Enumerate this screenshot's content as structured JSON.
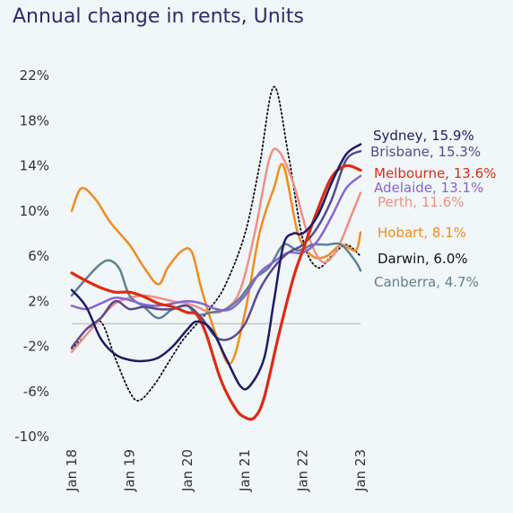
{
  "colors": {
    "background": "#f1f6f8",
    "zero_line": "#c4c4c4",
    "tick_text": "#333333",
    "title": "#2b2c6b"
  },
  "chart_data": {
    "type": "line",
    "title": "Annual change in rents, Units",
    "xlabel": "",
    "ylabel": "",
    "ylim": [
      -10,
      22
    ],
    "xlim": [
      "2018-01",
      "2023-01"
    ],
    "y_ticks": [
      "22%",
      "18%",
      "14%",
      "10%",
      "6%",
      "2%",
      "-2%",
      "-6%",
      "-10%"
    ],
    "y_tick_values": [
      22,
      18,
      14,
      10,
      6,
      2,
      -2,
      -6,
      -10
    ],
    "x_ticks": [
      "Jan 18",
      "Jan 19",
      "Jan 20",
      "Jan 21",
      "Jan 22",
      "Jan 23"
    ],
    "x_tick_values": [
      "2018-01",
      "2019-01",
      "2020-01",
      "2021-01",
      "2022-01",
      "2023-01"
    ],
    "grid": false,
    "legend": "end-labels",
    "series": [
      {
        "name": "Darwin",
        "end_label": "Darwin, 6.0%",
        "color": "#111111",
        "dash": "dotted",
        "points": [
          [
            "2018-01",
            -2.2
          ],
          [
            "2018-04",
            -1.0
          ],
          [
            "2018-07",
            0.2
          ],
          [
            "2018-10",
            -3.0
          ],
          [
            "2019-01",
            -6.0
          ],
          [
            "2019-03",
            -6.8
          ],
          [
            "2019-06",
            -5.5
          ],
          [
            "2019-09",
            -3.5
          ],
          [
            "2019-12",
            -1.5
          ],
          [
            "2020-03",
            0.0
          ],
          [
            "2020-06",
            1.5
          ],
          [
            "2020-09",
            3.5
          ],
          [
            "2021-01",
            8.0
          ],
          [
            "2021-04",
            14.0
          ],
          [
            "2021-07",
            21.0
          ],
          [
            "2021-10",
            15.0
          ],
          [
            "2022-01",
            7.5
          ],
          [
            "2022-04",
            5.0
          ],
          [
            "2022-07",
            6.0
          ],
          [
            "2022-10",
            7.0
          ],
          [
            "2023-01",
            6.0
          ]
        ]
      },
      {
        "name": "Hobart",
        "end_label": "Hobart, 8.1%",
        "color": "#f08c1e",
        "dash": "solid",
        "points": [
          [
            "2018-01",
            10.0
          ],
          [
            "2018-03",
            12.0
          ],
          [
            "2018-06",
            11.0
          ],
          [
            "2018-09",
            9.0
          ],
          [
            "2019-01",
            7.0
          ],
          [
            "2019-04",
            5.0
          ],
          [
            "2019-07",
            3.5
          ],
          [
            "2019-09",
            5.0
          ],
          [
            "2019-12",
            6.5
          ],
          [
            "2020-02",
            6.3
          ],
          [
            "2020-04",
            3.0
          ],
          [
            "2020-07",
            -1.0
          ],
          [
            "2020-10",
            -3.5
          ],
          [
            "2021-01",
            1.0
          ],
          [
            "2021-04",
            8.0
          ],
          [
            "2021-07",
            12.0
          ],
          [
            "2021-09",
            14.0
          ],
          [
            "2021-12",
            8.0
          ],
          [
            "2022-03",
            6.0
          ],
          [
            "2022-06",
            6.0
          ],
          [
            "2022-09",
            7.0
          ],
          [
            "2022-12",
            6.5
          ],
          [
            "2023-01",
            8.1
          ]
        ]
      },
      {
        "name": "Perth",
        "end_label": "Perth, 11.6%",
        "color": "#ef8f86",
        "dash": "solid",
        "points": [
          [
            "2018-01",
            -2.5
          ],
          [
            "2018-04",
            -1.0
          ],
          [
            "2018-07",
            0.5
          ],
          [
            "2018-10",
            1.8
          ],
          [
            "2019-01",
            2.3
          ],
          [
            "2019-04",
            2.5
          ],
          [
            "2019-07",
            2.3
          ],
          [
            "2019-10",
            2.0
          ],
          [
            "2020-01",
            1.8
          ],
          [
            "2020-03",
            1.5
          ],
          [
            "2020-06",
            1.0
          ],
          [
            "2020-09",
            1.3
          ],
          [
            "2020-12",
            3.0
          ],
          [
            "2021-03",
            8.0
          ],
          [
            "2021-06",
            14.5
          ],
          [
            "2021-08",
            15.3
          ],
          [
            "2021-11",
            12.5
          ],
          [
            "2022-02",
            8.0
          ],
          [
            "2022-05",
            5.5
          ],
          [
            "2022-08",
            6.5
          ],
          [
            "2022-11",
            9.5
          ],
          [
            "2023-01",
            11.6
          ]
        ]
      },
      {
        "name": "Canberra",
        "end_label": "Canberra, 4.7%",
        "color": "#5f8190",
        "dash": "solid",
        "points": [
          [
            "2018-01",
            2.5
          ],
          [
            "2018-04",
            4.0
          ],
          [
            "2018-07",
            5.3
          ],
          [
            "2018-09",
            5.6
          ],
          [
            "2018-11",
            4.8
          ],
          [
            "2019-01",
            2.5
          ],
          [
            "2019-04",
            1.5
          ],
          [
            "2019-07",
            0.5
          ],
          [
            "2019-10",
            1.3
          ],
          [
            "2020-01",
            1.6
          ],
          [
            "2020-03",
            0.8
          ],
          [
            "2020-06",
            1.0
          ],
          [
            "2020-09",
            1.3
          ],
          [
            "2020-12",
            2.3
          ],
          [
            "2021-03",
            4.0
          ],
          [
            "2021-06",
            5.0
          ],
          [
            "2021-09",
            7.0
          ],
          [
            "2021-12",
            6.5
          ],
          [
            "2022-03",
            7.0
          ],
          [
            "2022-06",
            7.0
          ],
          [
            "2022-09",
            7.0
          ],
          [
            "2022-12",
            5.5
          ],
          [
            "2023-01",
            4.7
          ]
        ]
      },
      {
        "name": "Adelaide",
        "end_label": "Adelaide, 13.1%",
        "color": "#8864d6",
        "dash": "solid",
        "points": [
          [
            "2018-01",
            1.6
          ],
          [
            "2018-04",
            1.3
          ],
          [
            "2018-07",
            1.8
          ],
          [
            "2018-10",
            2.3
          ],
          [
            "2019-01",
            2.1
          ],
          [
            "2019-04",
            1.7
          ],
          [
            "2019-07",
            1.6
          ],
          [
            "2019-10",
            1.8
          ],
          [
            "2020-01",
            2.0
          ],
          [
            "2020-04",
            1.8
          ],
          [
            "2020-07",
            1.3
          ],
          [
            "2020-10",
            1.3
          ],
          [
            "2021-01",
            2.5
          ],
          [
            "2021-04",
            4.5
          ],
          [
            "2021-07",
            5.5
          ],
          [
            "2021-10",
            6.3
          ],
          [
            "2022-01",
            6.3
          ],
          [
            "2022-04",
            7.3
          ],
          [
            "2022-07",
            9.5
          ],
          [
            "2022-10",
            12.0
          ],
          [
            "2023-01",
            13.1
          ]
        ]
      },
      {
        "name": "Brisbane",
        "end_label": "Brisbane, 15.3%",
        "color": "#5a4a8d",
        "dash": "solid",
        "points": [
          [
            "2018-01",
            -2.1
          ],
          [
            "2018-04",
            -0.5
          ],
          [
            "2018-07",
            0.5
          ],
          [
            "2018-10",
            2.0
          ],
          [
            "2019-01",
            1.3
          ],
          [
            "2019-04",
            1.5
          ],
          [
            "2019-07",
            1.3
          ],
          [
            "2019-10",
            1.3
          ],
          [
            "2020-01",
            1.6
          ],
          [
            "2020-04",
            0.5
          ],
          [
            "2020-07",
            -1.2
          ],
          [
            "2020-10",
            -1.3
          ],
          [
            "2021-01",
            0.0
          ],
          [
            "2021-04",
            3.0
          ],
          [
            "2021-07",
            5.0
          ],
          [
            "2021-10",
            6.3
          ],
          [
            "2022-01",
            7.0
          ],
          [
            "2022-04",
            8.5
          ],
          [
            "2022-07",
            11.0
          ],
          [
            "2022-10",
            14.5
          ],
          [
            "2023-01",
            15.3
          ]
        ]
      },
      {
        "name": "Melbourne",
        "end_label": "Melbourne, 13.6%",
        "color": "#dd2b12",
        "dash": "solid",
        "points": [
          [
            "2018-01",
            4.5
          ],
          [
            "2018-04",
            3.8
          ],
          [
            "2018-07",
            3.2
          ],
          [
            "2018-10",
            2.8
          ],
          [
            "2019-01",
            2.8
          ],
          [
            "2019-04",
            2.4
          ],
          [
            "2019-07",
            1.8
          ],
          [
            "2019-10",
            1.5
          ],
          [
            "2020-01",
            1.0
          ],
          [
            "2020-03",
            0.8
          ],
          [
            "2020-05",
            -1.0
          ],
          [
            "2020-08",
            -5.0
          ],
          [
            "2020-11",
            -7.5
          ],
          [
            "2021-01",
            -8.3
          ],
          [
            "2021-03",
            -8.3
          ],
          [
            "2021-05",
            -6.5
          ],
          [
            "2021-08",
            -1.0
          ],
          [
            "2021-11",
            4.0
          ],
          [
            "2022-01",
            6.5
          ],
          [
            "2022-04",
            10.0
          ],
          [
            "2022-07",
            13.0
          ],
          [
            "2022-10",
            14.0
          ],
          [
            "2023-01",
            13.6
          ]
        ]
      },
      {
        "name": "Sydney",
        "end_label": "Sydney, 15.9%",
        "color": "#1e1a68",
        "dash": "solid",
        "points": [
          [
            "2018-01",
            3.0
          ],
          [
            "2018-04",
            1.5
          ],
          [
            "2018-07",
            -1.3
          ],
          [
            "2018-10",
            -2.7
          ],
          [
            "2019-01",
            -3.2
          ],
          [
            "2019-04",
            -3.3
          ],
          [
            "2019-07",
            -3.0
          ],
          [
            "2019-10",
            -2.0
          ],
          [
            "2020-01",
            -0.5
          ],
          [
            "2020-03",
            0.2
          ],
          [
            "2020-06",
            -0.5
          ],
          [
            "2020-09",
            -3.0
          ],
          [
            "2020-12",
            -5.5
          ],
          [
            "2021-02",
            -5.5
          ],
          [
            "2021-05",
            -3.0
          ],
          [
            "2021-07",
            2.0
          ],
          [
            "2021-09",
            7.0
          ],
          [
            "2021-11",
            8.0
          ],
          [
            "2022-01",
            8.0
          ],
          [
            "2022-04",
            9.5
          ],
          [
            "2022-07",
            12.5
          ],
          [
            "2022-10",
            15.0
          ],
          [
            "2023-01",
            15.9
          ]
        ]
      }
    ]
  }
}
